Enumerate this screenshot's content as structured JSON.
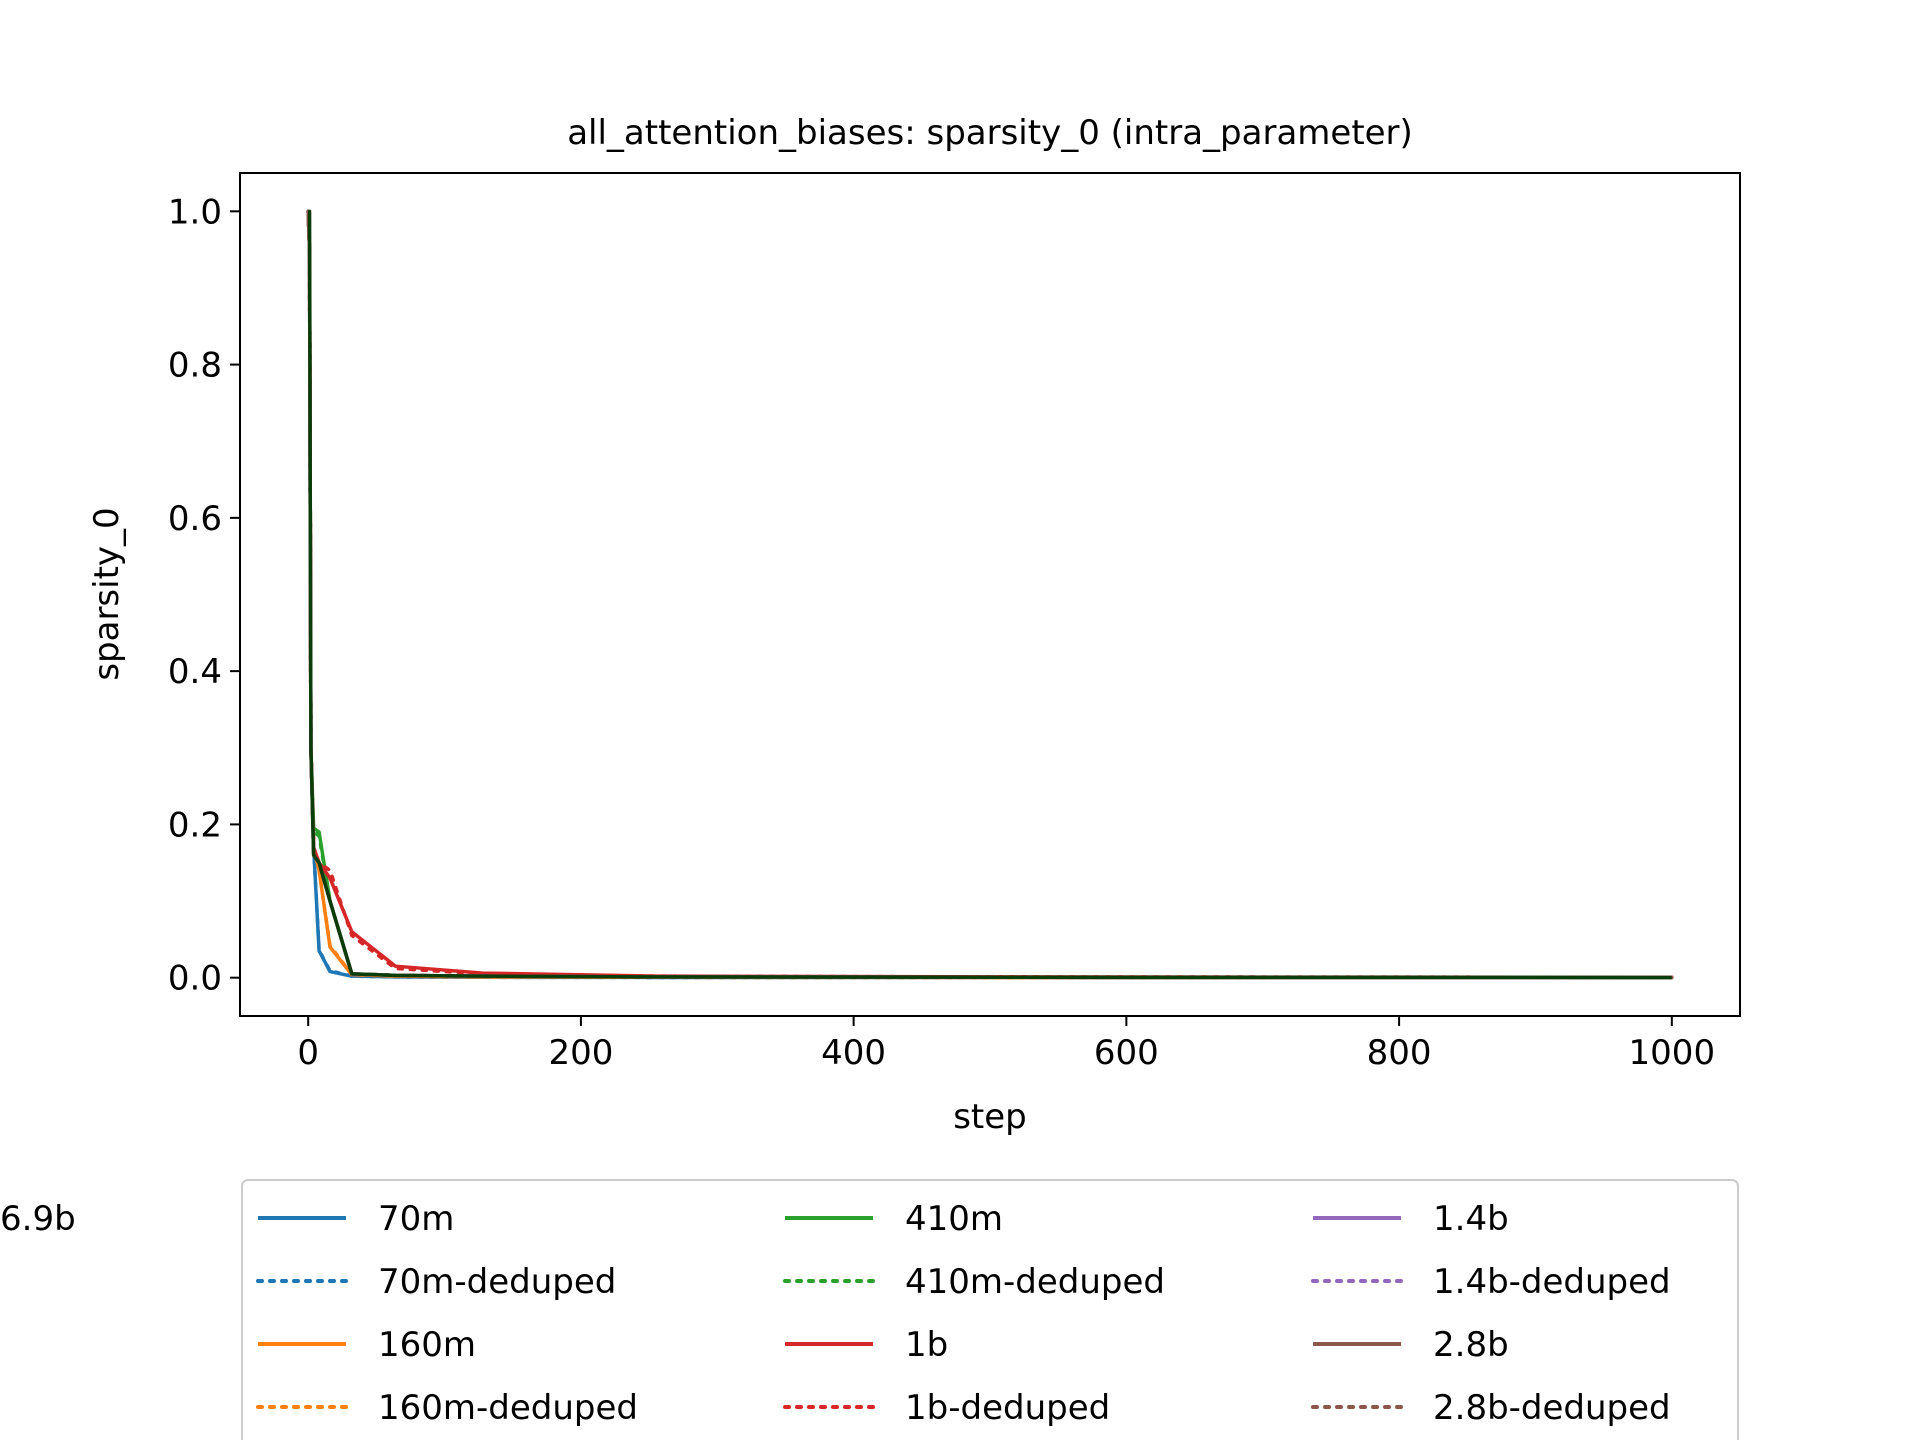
{
  "chart_data": {
    "type": "line",
    "title": "all_attention_biases: sparsity_0 (intra_parameter)",
    "xlabel": "step",
    "ylabel": "sparsity_0",
    "xlim": [
      -50,
      1050
    ],
    "ylim": [
      -0.05,
      1.05
    ],
    "xticks": [
      0,
      200,
      400,
      600,
      800,
      1000
    ],
    "xtick_labels": [
      "0",
      "200",
      "400",
      "600",
      "800",
      "1000"
    ],
    "yticks": [
      0.0,
      0.2,
      0.4,
      0.6,
      0.8,
      1.0
    ],
    "ytick_labels": [
      "0.0",
      "0.2",
      "0.4",
      "0.6",
      "0.8",
      "1.0"
    ],
    "grid": false,
    "legend_position": "below plot, 3 columns",
    "series": [
      {
        "name": "70m",
        "color": "#1f77b4",
        "dash": "solid",
        "x": [
          0,
          1,
          2,
          4,
          8,
          16,
          32,
          64,
          128,
          256,
          512,
          1000
        ],
        "y": [
          1.0,
          0.95,
          0.3,
          0.17,
          0.035,
          0.008,
          0.002,
          0.001,
          0.0005,
          0.0003,
          0.0002,
          0.0001
        ]
      },
      {
        "name": "70m-deduped",
        "color": "#1f77b4",
        "dash": "dotted",
        "x": [
          0,
          1,
          2,
          4,
          8,
          16,
          32,
          64,
          128,
          256,
          512,
          1000
        ],
        "y": [
          1.0,
          0.95,
          0.3,
          0.17,
          0.036,
          0.009,
          0.002,
          0.001,
          0.0005,
          0.0003,
          0.0002,
          0.0001
        ]
      },
      {
        "name": "160m",
        "color": "#ff7f0e",
        "dash": "solid",
        "x": [
          0,
          1,
          2,
          4,
          8,
          16,
          32,
          64,
          128,
          256,
          512,
          1000
        ],
        "y": [
          1.0,
          0.95,
          0.3,
          0.17,
          0.14,
          0.04,
          0.004,
          0.002,
          0.001,
          0.0005,
          0.0003,
          0.0002
        ]
      },
      {
        "name": "160m-deduped",
        "color": "#ff7f0e",
        "dash": "dotted",
        "x": [
          0,
          1,
          2,
          4,
          8,
          16,
          32,
          64,
          128,
          256,
          512,
          1000
        ],
        "y": [
          1.0,
          0.95,
          0.3,
          0.17,
          0.14,
          0.042,
          0.004,
          0.002,
          0.001,
          0.0005,
          0.0003,
          0.0002
        ]
      },
      {
        "name": "410m",
        "color": "#2ca02c",
        "dash": "solid",
        "x": [
          0,
          1,
          2,
          4,
          8,
          16,
          32,
          64,
          128,
          256,
          512,
          1000
        ],
        "y": [
          1.0,
          0.95,
          0.3,
          0.195,
          0.19,
          0.1,
          0.005,
          0.003,
          0.002,
          0.001,
          0.0005,
          0.0003
        ]
      },
      {
        "name": "410m-deduped",
        "color": "#2ca02c",
        "dash": "dotted",
        "x": [
          0,
          1,
          2,
          4,
          8,
          16,
          32,
          64,
          128,
          256,
          512,
          1000
        ],
        "y": [
          1.0,
          0.95,
          0.3,
          0.19,
          0.185,
          0.1,
          0.005,
          0.003,
          0.002,
          0.001,
          0.0005,
          0.0003
        ]
      },
      {
        "name": "1b",
        "color": "#d62728",
        "dash": "solid",
        "x": [
          0,
          1,
          2,
          4,
          8,
          16,
          32,
          64,
          128,
          256,
          512,
          1000
        ],
        "y": [
          1.0,
          0.95,
          0.3,
          0.17,
          0.15,
          0.13,
          0.06,
          0.015,
          0.006,
          0.002,
          0.001,
          0.0005
        ]
      },
      {
        "name": "1b-deduped",
        "color": "#d62728",
        "dash": "dotted",
        "x": [
          0,
          1,
          2,
          4,
          8,
          16,
          32,
          64,
          128,
          256,
          512,
          1000
        ],
        "y": [
          1.0,
          0.95,
          0.3,
          0.17,
          0.15,
          0.14,
          0.055,
          0.012,
          0.005,
          0.002,
          0.001,
          0.0005
        ]
      },
      {
        "name": "1.4b",
        "color": "#9467bd",
        "dash": "solid",
        "x": [
          0,
          1,
          2,
          4,
          8,
          16,
          32,
          64,
          128,
          256,
          512,
          1000
        ],
        "y": [
          1.0,
          0.95,
          0.3,
          0.16,
          0.15,
          0.1,
          0.005,
          0.003,
          0.002,
          0.001,
          0.0005,
          0.0003
        ]
      },
      {
        "name": "1.4b-deduped",
        "color": "#9467bd",
        "dash": "dotted",
        "x": [
          0,
          1,
          2,
          4,
          8,
          16,
          32,
          64,
          128,
          256,
          512,
          1000
        ],
        "y": [
          1.0,
          0.95,
          0.3,
          0.16,
          0.15,
          0.1,
          0.005,
          0.003,
          0.002,
          0.001,
          0.0005,
          0.0003
        ]
      },
      {
        "name": "2.8b",
        "color": "#8c564b",
        "dash": "solid",
        "x": [
          0,
          1,
          2,
          4,
          8,
          16,
          32,
          64,
          128,
          256,
          512,
          1000
        ],
        "y": [
          1.0,
          0.95,
          0.3,
          0.16,
          0.15,
          0.1,
          0.005,
          0.003,
          0.002,
          0.001,
          0.0005,
          0.0003
        ]
      },
      {
        "name": "2.8b-deduped",
        "color": "#8c564b",
        "dash": "dotted",
        "x": [
          0,
          1,
          2,
          4,
          8,
          16,
          32,
          64,
          128,
          256,
          512,
          1000
        ],
        "y": [
          1.0,
          0.95,
          0.3,
          0.16,
          0.15,
          0.1,
          0.005,
          0.003,
          0.002,
          0.001,
          0.0005,
          0.0003
        ]
      },
      {
        "name": "6.9b",
        "color": "#0b3d0b",
        "dash": "solid",
        "x": [
          0,
          1,
          2,
          4,
          8,
          16,
          32,
          64,
          128,
          256,
          512,
          1000
        ],
        "y": [
          1.0,
          1.0,
          0.3,
          0.16,
          0.15,
          0.1,
          0.005,
          0.003,
          0.002,
          0.001,
          0.0005,
          0.0003
        ]
      }
    ]
  }
}
